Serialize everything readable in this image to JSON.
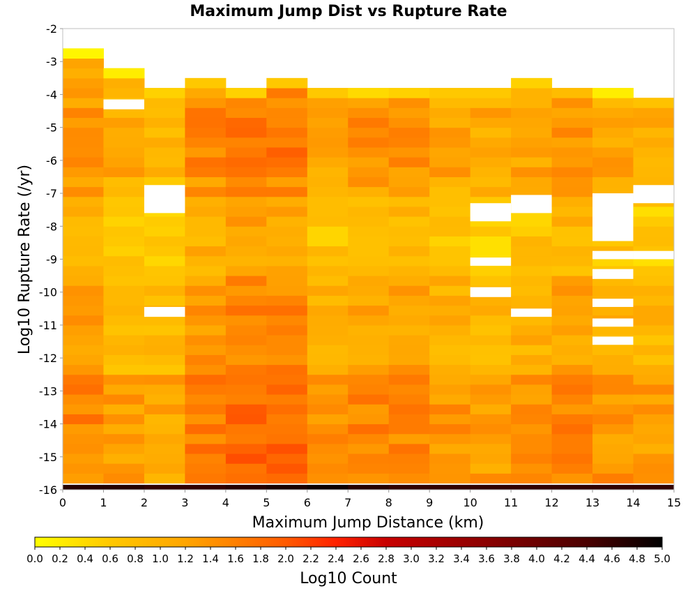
{
  "chart_data": {
    "type": "heatmap",
    "title": "Maximum Jump Dist vs Rupture Rate",
    "xlabel": "Maximum Jump Distance (km)",
    "ylabel": "Log10 Rupture Rate (/yr)",
    "colorbar_label": "Log10 Count",
    "xlim": [
      0,
      15
    ],
    "ylim": [
      -16,
      -2
    ],
    "x_ticks": [
      "0",
      "1",
      "2",
      "3",
      "4",
      "5",
      "6",
      "7",
      "8",
      "9",
      "10",
      "11",
      "12",
      "13",
      "14",
      "15"
    ],
    "y_ticks": [
      "-2",
      "-3",
      "-4",
      "-5",
      "-6",
      "-7",
      "-8",
      "-9",
      "-10",
      "-11",
      "-12",
      "-13",
      "-14",
      "-15",
      "-16"
    ],
    "colorbar_range": [
      0.0,
      5.0
    ],
    "colorbar_ticks": [
      "0.0",
      "0.2",
      "0.4",
      "0.6",
      "0.8",
      "1.0",
      "1.2",
      "1.4",
      "1.6",
      "1.8",
      "2.0",
      "2.2",
      "2.4",
      "2.6",
      "2.8",
      "3.0",
      "3.2",
      "3.4",
      "3.6",
      "3.8",
      "4.0",
      "4.2",
      "4.4",
      "4.6",
      "4.8",
      "5.0"
    ],
    "colormap": [
      [
        0.0,
        "#ffff00"
      ],
      [
        0.6,
        "#ffc800"
      ],
      [
        1.2,
        "#ffa500"
      ],
      [
        2.0,
        "#ff5a00"
      ],
      [
        2.4,
        "#ff2200"
      ],
      [
        2.8,
        "#c80000"
      ],
      [
        3.6,
        "#8b0000"
      ],
      [
        4.4,
        "#4a0000"
      ],
      [
        5.0,
        "#000000"
      ]
    ],
    "y_bin_width": 0.3,
    "cells": [
      {
        "x": 0,
        "y_start": -15.8,
        "y_end": -2.7,
        "base": 1.2,
        "top_value": 0.1
      },
      {
        "x": 1,
        "y_start": -15.8,
        "y_end": -3.3,
        "base": 0.9,
        "top_value": 0.2
      },
      {
        "x": 2,
        "y_start": -15.8,
        "y_end": -3.9,
        "base": 0.8,
        "top_value": 0.5
      },
      {
        "x": 3,
        "y_start": -15.8,
        "y_end": -3.6,
        "base": 1.3,
        "top_value": 0.6
      },
      {
        "x": 4,
        "y_start": -15.8,
        "y_end": -3.9,
        "base": 1.5,
        "top_value": 0.5
      },
      {
        "x": 5,
        "y_start": -15.8,
        "y_end": -3.6,
        "base": 1.5,
        "top_value": 0.6
      },
      {
        "x": 6,
        "y_start": -15.8,
        "y_end": -3.9,
        "base": 1.0,
        "top_value": 0.6
      },
      {
        "x": 7,
        "y_start": -15.8,
        "y_end": -3.9,
        "base": 1.2,
        "top_value": 0.4
      },
      {
        "x": 8,
        "y_start": -15.8,
        "y_end": -3.9,
        "base": 1.2,
        "top_value": 0.5
      },
      {
        "x": 9,
        "y_start": -15.8,
        "y_end": -3.9,
        "base": 1.0,
        "top_value": 0.6
      },
      {
        "x": 10,
        "y_start": -15.8,
        "y_end": -3.9,
        "base": 0.9,
        "top_value": 0.6
      },
      {
        "x": 11,
        "y_start": -15.8,
        "y_end": -3.6,
        "base": 1.0,
        "top_value": 0.5
      },
      {
        "x": 12,
        "y_start": -15.8,
        "y_end": -3.9,
        "base": 1.2,
        "top_value": 0.8
      },
      {
        "x": 13,
        "y_start": -15.8,
        "y_end": -3.9,
        "base": 1.0,
        "top_value": 0.2
      },
      {
        "x": 14,
        "y_start": -15.8,
        "y_end": -4.2,
        "base": 0.9,
        "top_value": 0.7
      }
    ],
    "bottom_row": {
      "y_start": -16.0,
      "y_end": -15.85,
      "values": [
        4.7,
        4.7,
        4.6,
        4.6,
        4.7,
        4.8,
        4.9,
        4.7,
        4.6,
        4.6,
        4.6,
        4.6,
        4.6,
        4.6,
        4.6
      ]
    },
    "empty_bins": [
      {
        "x": 1,
        "y_start": -4.45,
        "y_end": -4.15
      },
      {
        "x": 2,
        "y_start": -7.6,
        "y_end": -6.75
      },
      {
        "x": 2,
        "y_start": -10.75,
        "y_end": -10.45
      },
      {
        "x": 10,
        "y_start": -7.85,
        "y_end": -7.3
      },
      {
        "x": 10,
        "y_start": -9.2,
        "y_end": -8.95
      },
      {
        "x": 10,
        "y_start": -10.15,
        "y_end": -9.85
      },
      {
        "x": 11,
        "y_start": -7.6,
        "y_end": -7.05
      },
      {
        "x": 11,
        "y_start": -10.75,
        "y_end": -10.5
      },
      {
        "x": 13,
        "y_start": -8.45,
        "y_end": -7.0
      },
      {
        "x": 13,
        "y_start": -9.0,
        "y_end": -8.75
      },
      {
        "x": 13,
        "y_start": -9.6,
        "y_end": -9.3
      },
      {
        "x": 13,
        "y_start": -10.45,
        "y_end": -10.2
      },
      {
        "x": 13,
        "y_start": -11.05,
        "y_end": -10.8
      },
      {
        "x": 13,
        "y_start": -11.6,
        "y_end": -11.35
      },
      {
        "x": 14,
        "y_start": -7.3,
        "y_end": -6.75
      },
      {
        "x": 14,
        "y_start": -9.0,
        "y_end": -8.75
      }
    ]
  }
}
